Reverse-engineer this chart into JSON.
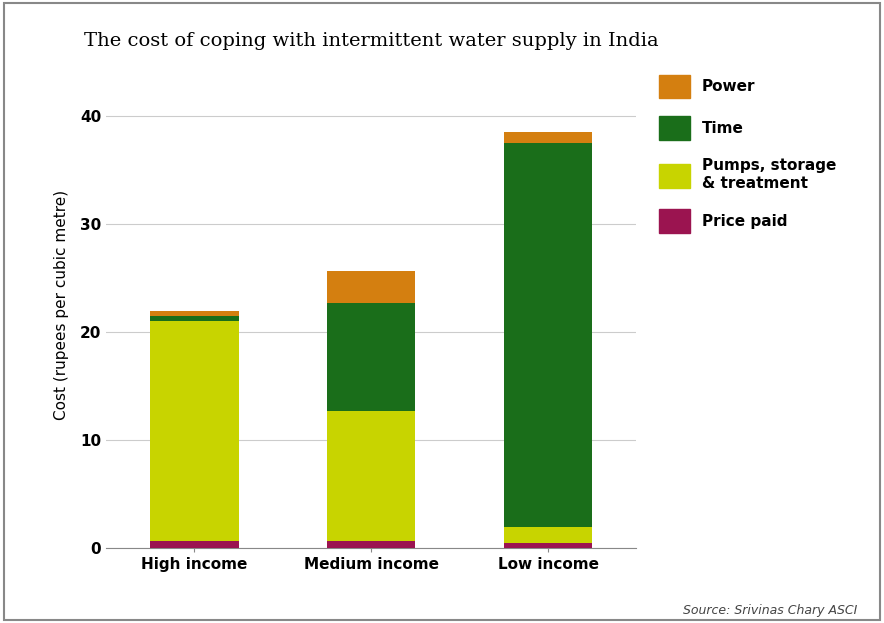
{
  "title": "The cost of coping with intermittent water supply in India",
  "ylabel": "Cost (rupees per cubic metre)",
  "source": "Source: Srivinas Chary ASCI",
  "categories": [
    "High income",
    "Medium income",
    "Low income"
  ],
  "segments": {
    "Price paid": [
      0.7,
      0.7,
      0.5
    ],
    "Pumps, storage & treatment": [
      20.3,
      12.0,
      1.5
    ],
    "Time": [
      0.5,
      10.0,
      35.5
    ],
    "Power": [
      0.5,
      3.0,
      1.0
    ]
  },
  "colors": {
    "Price paid": "#9b1450",
    "Pumps, storage & treatment": "#c8d400",
    "Time": "#1a6e1a",
    "Power": "#d47f10"
  },
  "ylim": [
    0,
    45
  ],
  "yticks": [
    0,
    10,
    20,
    30,
    40
  ],
  "bar_width": 0.5,
  "legend_order": [
    "Power",
    "Time",
    "Pumps, storage\n& treatment",
    "Price paid"
  ],
  "legend_colors_map": {
    "Power": "#d47f10",
    "Time": "#1a6e1a",
    "Pumps, storage\n& treatment": "#c8d400",
    "Price paid": "#9b1450"
  },
  "bg_color": "#ffffff",
  "plot_bg_color": "#ffffff",
  "title_fontsize": 14,
  "label_fontsize": 11,
  "tick_fontsize": 11,
  "legend_fontsize": 11,
  "source_fontsize": 9,
  "border_color": "#888888",
  "grid_color": "#cccccc"
}
